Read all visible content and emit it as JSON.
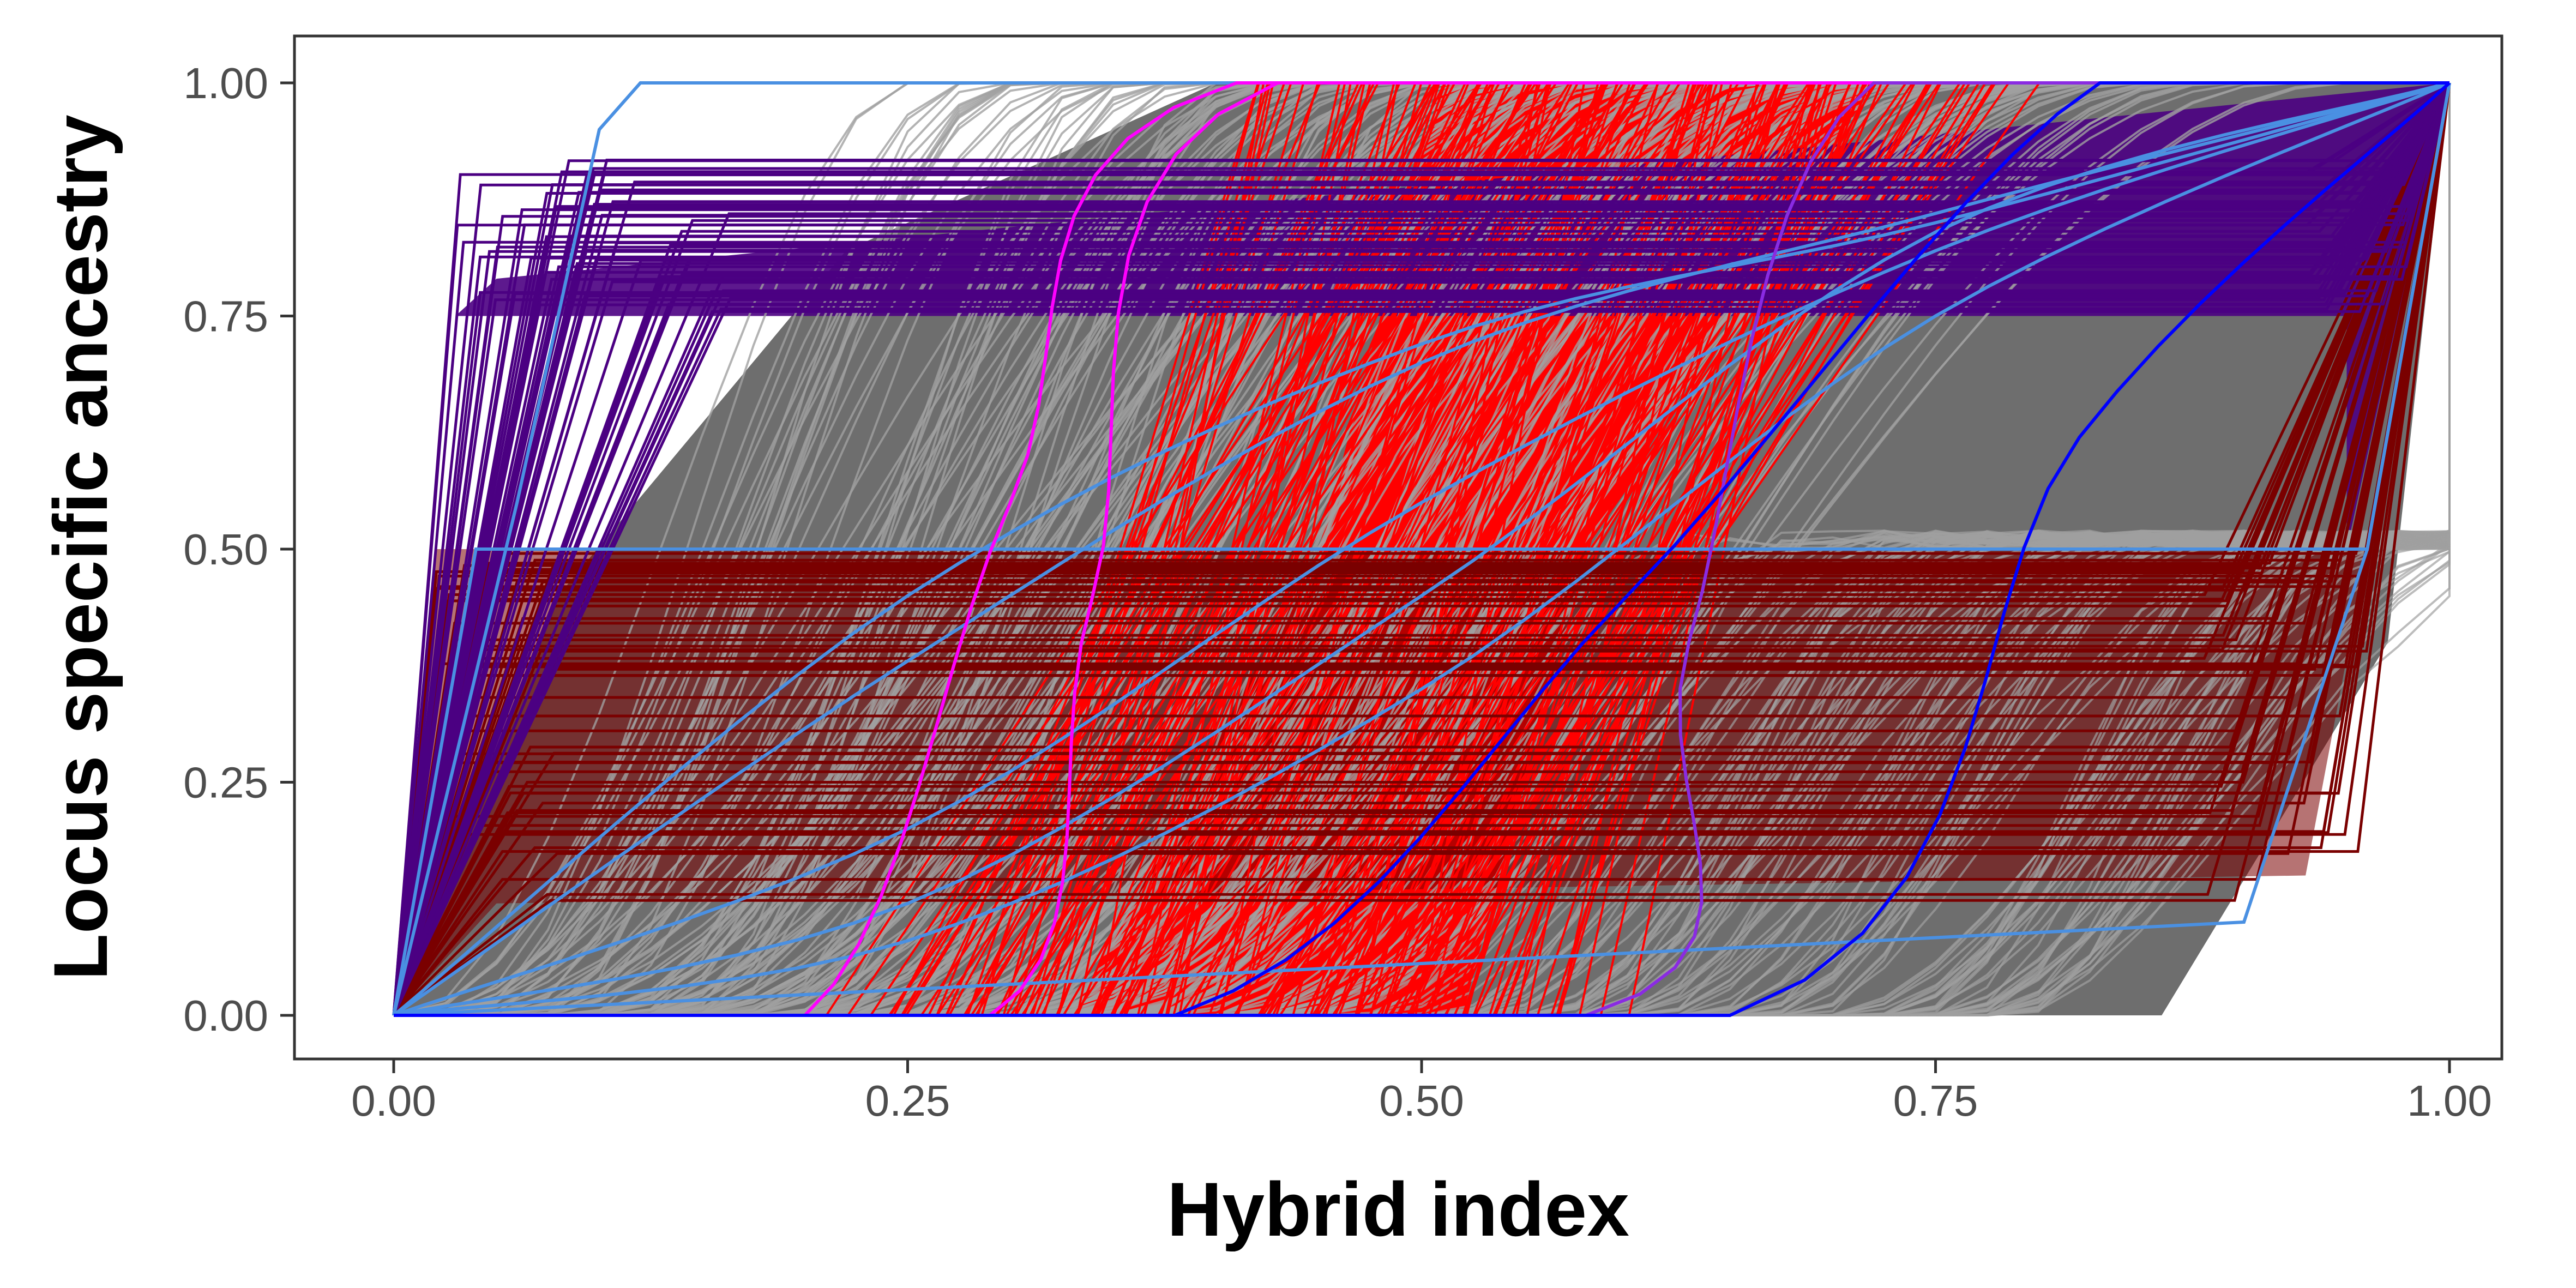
{
  "chart_data": {
    "type": "line",
    "xlabel": "Hybrid index",
    "ylabel": "Locus specific ancestry",
    "xlim": [
      0,
      1
    ],
    "ylim": [
      0,
      1
    ],
    "x_ticks": [
      0,
      0.25,
      0.5,
      0.75,
      1
    ],
    "x_tick_labels": [
      "0.00",
      "0.25",
      "0.50",
      "0.75",
      "1.00"
    ],
    "y_ticks": [
      0,
      0.25,
      0.5,
      0.75,
      1
    ],
    "y_tick_labels": [
      "0.00",
      "0.25",
      "0.50",
      "0.75",
      "1.00"
    ],
    "grid": false,
    "legend": "none",
    "colors": {
      "background_loci": "#a0a0a0",
      "background_fill": "#6e6e6e",
      "steep_loci": "#ff0000",
      "excess_low": "#7a0000",
      "excess_high": "#4b0082",
      "highlight_light_blue": "#4a90e2",
      "highlight_magenta": "#ff00ff",
      "highlight_purple": "#8a2be2",
      "highlight_blue": "#0000ff"
    },
    "series_groups": [
      {
        "group": "background loci",
        "color": "#a0a0a0",
        "description": "many logistic clines spanning the full hybrid index range",
        "count": 260
      },
      {
        "group": "steep central loci",
        "color": "#ff0000",
        "center_range": [
          0.35,
          0.65
        ],
        "count": 160
      },
      {
        "group": "heterozygote-excess low loci",
        "color": "#7a0000",
        "plateau_range": [
          0.12,
          0.5
        ],
        "count": 60
      },
      {
        "group": "heterozygote-excess high loci",
        "color": "#4b0082",
        "plateau_range": [
          0.5,
          0.92
        ],
        "count": 60
      }
    ],
    "highlight_series": [
      {
        "color": "#4a90e2",
        "kind": "flat",
        "plateau": 0.5,
        "x": [
          0,
          0.04,
          0.96,
          1
        ],
        "y": [
          0,
          0.5,
          0.5,
          1
        ]
      },
      {
        "color": "#4a90e2",
        "kind": "beta",
        "x": [
          0,
          0.25,
          0.5,
          0.75,
          1
        ],
        "y": [
          0,
          0.38,
          0.7,
          0.86,
          1
        ]
      },
      {
        "color": "#4a90e2",
        "kind": "beta",
        "x": [
          0,
          0.25,
          0.5,
          0.75,
          1
        ],
        "y": [
          0,
          0.12,
          0.45,
          0.84,
          1
        ]
      },
      {
        "color": "#4a90e2",
        "kind": "beta",
        "x": [
          0,
          0.25,
          0.5,
          0.75,
          1
        ],
        "y": [
          0,
          0.45,
          0.72,
          0.85,
          1
        ]
      },
      {
        "color": "#4a90e2",
        "kind": "beta",
        "x": [
          0,
          0.25,
          0.5,
          0.75,
          1
        ],
        "y": [
          0,
          0.2,
          0.55,
          0.82,
          1
        ]
      },
      {
        "color": "#4a90e2",
        "kind": "beta",
        "x": [
          0,
          0.25,
          0.5,
          0.75,
          1
        ],
        "y": [
          0,
          0.08,
          0.35,
          0.75,
          1
        ]
      },
      {
        "color": "#4a90e2",
        "kind": "steep-early",
        "x": [
          0,
          0.06,
          0.1,
          0.12,
          1
        ],
        "y": [
          0,
          0.55,
          0.95,
          1,
          1
        ]
      },
      {
        "color": "#4a90e2",
        "kind": "steep-late",
        "x": [
          0,
          0.9,
          0.96,
          1
        ],
        "y": [
          0,
          0.1,
          0.5,
          1
        ]
      },
      {
        "color": "#ff00ff",
        "kind": "cline",
        "x": [
          0,
          0.2,
          0.3,
          0.41,
          1
        ],
        "y": [
          0,
          0,
          0.55,
          1,
          1
        ]
      },
      {
        "color": "#ff00ff",
        "kind": "cline",
        "x": [
          0,
          0.29,
          0.34,
          0.43,
          1
        ],
        "y": [
          0,
          0,
          0.45,
          1,
          1
        ]
      },
      {
        "color": "#8a2be2",
        "kind": "cline",
        "x": [
          0,
          0.58,
          0.63,
          0.72,
          1
        ],
        "y": [
          0,
          0,
          0.4,
          1,
          1
        ]
      },
      {
        "color": "#0000ff",
        "kind": "cline",
        "x": [
          0,
          0.38,
          0.6,
          0.83,
          1
        ],
        "y": [
          0,
          0,
          0.45,
          1,
          1
        ]
      },
      {
        "color": "#0000ff",
        "kind": "cline",
        "x": [
          0,
          0.65,
          0.82,
          1
        ],
        "y": [
          0,
          0,
          0.62,
          1
        ]
      }
    ]
  }
}
